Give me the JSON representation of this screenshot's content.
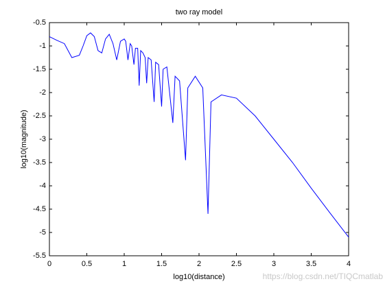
{
  "chart_data": {
    "type": "line",
    "title": "two ray model",
    "x_label": "log10(distance)",
    "y_label": "log10(magnitude)",
    "watermark": "https://blog.csdn.net/TIQCmatlab",
    "x": [
      0,
      0.1,
      0.2,
      0.3,
      0.4,
      0.45,
      0.5,
      0.55,
      0.6,
      0.65,
      0.7,
      0.75,
      0.8,
      0.85,
      0.9,
      0.95,
      1.0,
      1.02,
      1.05,
      1.08,
      1.1,
      1.13,
      1.15,
      1.18,
      1.2,
      1.22,
      1.25,
      1.28,
      1.3,
      1.32,
      1.36,
      1.4,
      1.42,
      1.46,
      1.5,
      1.52,
      1.57,
      1.65,
      1.68,
      1.74,
      1.82,
      1.85,
      1.95,
      2.05,
      2.12,
      2.16,
      2.3,
      2.5,
      2.75,
      3.0,
      3.25,
      3.5,
      3.75,
      4.0
    ],
    "series": [
      {
        "color": "#0000ff",
        "values": [
          -0.8,
          -0.88,
          -0.95,
          -1.25,
          -1.2,
          -1.0,
          -0.78,
          -0.72,
          -0.8,
          -1.1,
          -1.15,
          -0.85,
          -0.75,
          -0.95,
          -1.3,
          -0.9,
          -0.85,
          -0.9,
          -1.3,
          -0.95,
          -1.0,
          -1.4,
          -1.05,
          -1.05,
          -1.85,
          -1.1,
          -1.15,
          -1.25,
          -1.8,
          -1.25,
          -1.3,
          -2.2,
          -1.35,
          -1.4,
          -2.3,
          -1.5,
          -1.45,
          -2.65,
          -1.65,
          -1.75,
          -3.45,
          -1.9,
          -1.65,
          -1.9,
          -4.6,
          -2.2,
          -2.05,
          -2.12,
          -2.5,
          -3.0,
          -3.5,
          -4.05,
          -4.58,
          -5.1
        ]
      }
    ],
    "xlim": [
      0,
      4
    ],
    "xticks": [
      0,
      0.5,
      1,
      1.5,
      2,
      2.5,
      3,
      3.5,
      4
    ],
    "ylim": [
      -5.5,
      -0.5
    ],
    "yticks": [
      -5.5,
      -5,
      -4.5,
      -4,
      -3.5,
      -3,
      -2.5,
      -2,
      -1.5,
      -1,
      -0.5
    ],
    "grid": false
  }
}
